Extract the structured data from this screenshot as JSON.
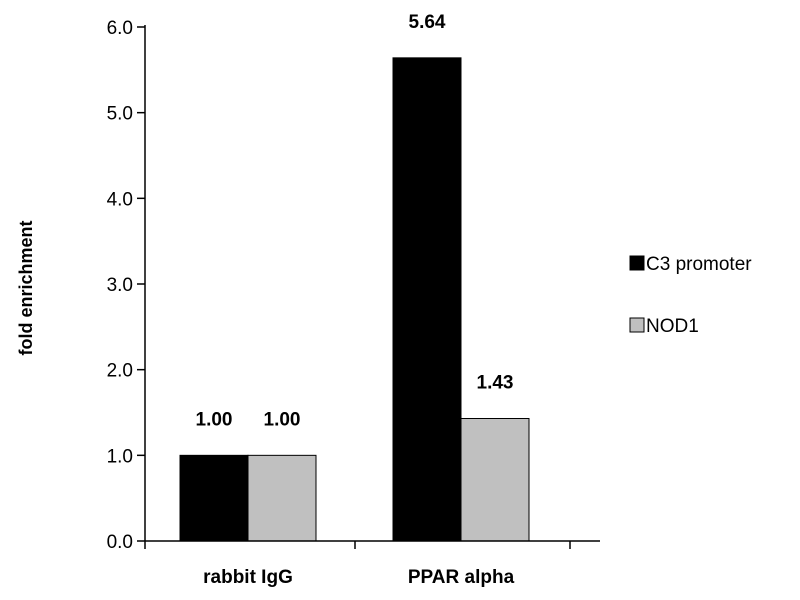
{
  "chart_data": {
    "type": "bar",
    "title": "",
    "xlabel": "",
    "ylabel": "fold enrichment",
    "categories": [
      "rabbit IgG",
      "PPAR alpha"
    ],
    "series": [
      {
        "name": "C3 promoter",
        "values": [
          1.0,
          5.64
        ],
        "value_labels": [
          "1.00",
          "5.64"
        ],
        "color": "#000000"
      },
      {
        "name": "NOD1",
        "values": [
          1.0,
          1.43
        ],
        "value_labels": [
          "1.00",
          "1.43"
        ],
        "color": "#c0c0c0"
      }
    ],
    "ylim": [
      0,
      6
    ],
    "yticks": [
      0,
      1,
      2,
      3,
      4,
      5,
      6
    ],
    "ytick_labels": [
      "0.0",
      "1.0",
      "2.0",
      "3.0",
      "4.0",
      "5.0",
      "6.0"
    ],
    "grid": false,
    "legend_position": "right"
  }
}
